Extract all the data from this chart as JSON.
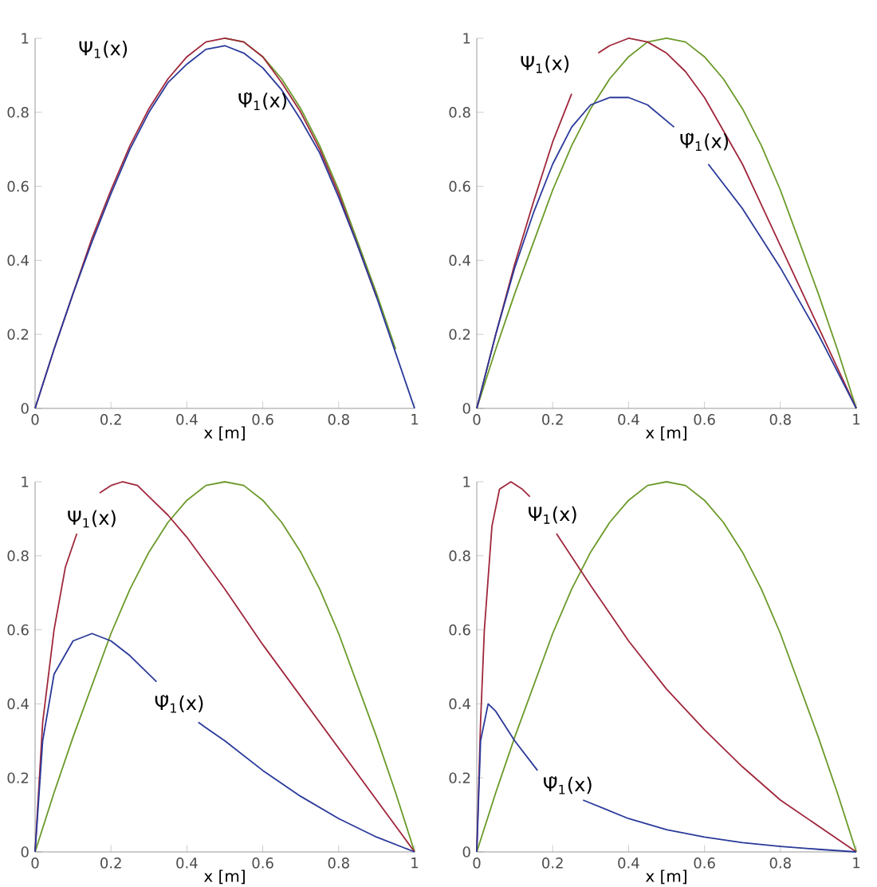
{
  "chart_data": [
    {
      "type": "line",
      "xlabel": "x  [m]",
      "xlim": [
        0,
        1
      ],
      "ylim": [
        0,
        1
      ],
      "xticks": [
        0,
        0.2,
        0.4,
        0.6,
        0.8,
        1
      ],
      "yticks": [
        0,
        0.2,
        0.4,
        0.6,
        0.8,
        1
      ],
      "series": [
        {
          "color": "#6b9a2a",
          "x": [
            0.5,
            0.55,
            0.6,
            0.65,
            0.7,
            0.75,
            0.8,
            0.85,
            0.9,
            0.95
          ],
          "values": [
            1,
            0.99,
            0.95,
            0.89,
            0.81,
            0.71,
            0.59,
            0.45,
            0.31,
            0.16
          ]
        },
        {
          "color": "#a0283c",
          "x": [
            0,
            0.05,
            0.1,
            0.15,
            0.2,
            0.25,
            0.3,
            0.35,
            0.4,
            0.45,
            0.5,
            0.55,
            0.6,
            0.65,
            0.7,
            0.75,
            0.8,
            0.85,
            0.9
          ],
          "values": [
            0,
            0.16,
            0.31,
            0.46,
            0.59,
            0.71,
            0.81,
            0.89,
            0.95,
            0.99,
            1,
            0.99,
            0.95,
            0.88,
            0.8,
            0.7,
            0.58,
            0.44,
            0.3
          ]
        },
        {
          "color": "#2a3a9a",
          "x": [
            0,
            0.05,
            0.1,
            0.15,
            0.2,
            0.25,
            0.3,
            0.35,
            0.4,
            0.45,
            0.5,
            0.55,
            0.6,
            0.65,
            0.7,
            0.75,
            0.8,
            0.85,
            0.9,
            0.95,
            1
          ],
          "values": [
            0,
            0.16,
            0.31,
            0.45,
            0.58,
            0.7,
            0.8,
            0.88,
            0.93,
            0.97,
            0.98,
            0.96,
            0.92,
            0.86,
            0.78,
            0.69,
            0.57,
            0.44,
            0.3,
            0.15,
            0
          ]
        }
      ],
      "annotations": [
        "Ψ$_{1}$(x)",
        "Ψ̃$_{1}$(x)"
      ]
    },
    {
      "type": "line",
      "xlabel": "x  [m]",
      "xlim": [
        0,
        1
      ],
      "ylim": [
        0,
        1
      ],
      "xticks": [
        0,
        0.2,
        0.4,
        0.6,
        0.8,
        1
      ],
      "yticks": [
        0,
        0.2,
        0.4,
        0.6,
        0.8,
        1
      ],
      "series": [
        {
          "color": "#6b9a2a",
          "x": [
            0,
            0.05,
            0.1,
            0.15,
            0.2,
            0.25,
            0.3,
            0.35,
            0.4,
            0.45,
            0.5,
            0.55,
            0.6,
            0.65,
            0.7,
            0.75,
            0.8,
            0.85,
            0.9,
            0.95,
            1
          ],
          "values": [
            0,
            0.16,
            0.31,
            0.45,
            0.59,
            0.71,
            0.81,
            0.89,
            0.95,
            0.99,
            1,
            0.99,
            0.95,
            0.89,
            0.81,
            0.71,
            0.59,
            0.45,
            0.31,
            0.16,
            0
          ]
        },
        {
          "color": "#a0283c",
          "x": [
            0,
            0.05,
            0.1,
            0.15,
            0.2,
            0.25,
            0.28,
            0.32,
            0.35,
            0.4,
            0.45,
            0.5,
            0.55,
            0.6,
            0.65,
            0.7,
            0.75,
            0.8,
            0.85,
            0.9,
            0.95,
            1
          ],
          "values": [
            0,
            0.2,
            0.39,
            0.56,
            0.72,
            0.85,
            null,
            0.96,
            0.98,
            1,
            0.99,
            0.96,
            0.91,
            0.84,
            0.75,
            0.66,
            0.55,
            0.44,
            0.33,
            0.22,
            0.11,
            0
          ]
        },
        {
          "color": "#2a3a9a",
          "x": [
            0,
            0.05,
            0.1,
            0.15,
            0.2,
            0.25,
            0.3,
            0.35,
            0.4,
            0.45,
            0.52,
            0.57,
            0.61,
            0.7,
            0.8,
            0.9,
            1
          ],
          "values": [
            0,
            0.2,
            0.38,
            0.53,
            0.66,
            0.76,
            0.82,
            0.84,
            0.84,
            0.82,
            0.76,
            null,
            0.66,
            0.54,
            0.38,
            0.2,
            0
          ]
        }
      ],
      "annotations": [
        "Ψ$_{1}$(x)",
        "Ψ̃$_{1}$(x)"
      ]
    },
    {
      "type": "line",
      "xlabel": "x  [m]",
      "xlim": [
        0,
        1
      ],
      "ylim": [
        0,
        1
      ],
      "xticks": [
        0,
        0.2,
        0.4,
        0.6,
        0.8,
        1
      ],
      "yticks": [
        0,
        0.2,
        0.4,
        0.6,
        0.8,
        1
      ],
      "series": [
        {
          "color": "#6b9a2a",
          "x": [
            0,
            0.05,
            0.1,
            0.15,
            0.2,
            0.25,
            0.3,
            0.35,
            0.4,
            0.45,
            0.5,
            0.55,
            0.6,
            0.65,
            0.7,
            0.75,
            0.8,
            0.85,
            0.9,
            0.95,
            1
          ],
          "values": [
            0,
            0.16,
            0.31,
            0.45,
            0.59,
            0.71,
            0.81,
            0.89,
            0.95,
            0.99,
            1,
            0.99,
            0.95,
            0.89,
            0.81,
            0.71,
            0.59,
            0.45,
            0.31,
            0.16,
            0
          ]
        },
        {
          "color": "#a0283c",
          "x": [
            0,
            0.02,
            0.05,
            0.08,
            0.11,
            0.14,
            0.17,
            0.2,
            0.23,
            0.27,
            0.3,
            0.35,
            0.4,
            0.5,
            0.6,
            0.7,
            0.8,
            0.9,
            1
          ],
          "values": [
            0,
            0.35,
            0.6,
            0.77,
            0.86,
            null,
            0.97,
            0.99,
            1,
            0.99,
            0.96,
            0.91,
            0.85,
            0.71,
            0.56,
            0.42,
            0.28,
            0.14,
            0
          ]
        },
        {
          "color": "#2a3a9a",
          "x": [
            0,
            0.02,
            0.05,
            0.1,
            0.15,
            0.2,
            0.25,
            0.32,
            0.37,
            0.43,
            0.5,
            0.6,
            0.7,
            0.8,
            0.9,
            1
          ],
          "values": [
            0,
            0.3,
            0.48,
            0.57,
            0.59,
            0.57,
            0.53,
            0.46,
            null,
            0.35,
            0.3,
            0.22,
            0.15,
            0.09,
            0.04,
            0
          ]
        }
      ],
      "annotations": [
        "Ψ$_{1}$(x)",
        "Ψ̃$_{1}$(x)"
      ]
    },
    {
      "type": "line",
      "xlabel": "x  [m]",
      "xlim": [
        0,
        1
      ],
      "ylim": [
        0,
        1
      ],
      "xticks": [
        0,
        0.2,
        0.4,
        0.6,
        0.8,
        1
      ],
      "yticks": [
        0,
        0.2,
        0.4,
        0.6,
        0.8,
        1
      ],
      "series": [
        {
          "color": "#6b9a2a",
          "x": [
            0,
            0.05,
            0.1,
            0.15,
            0.2,
            0.25,
            0.3,
            0.35,
            0.4,
            0.45,
            0.5,
            0.55,
            0.6,
            0.65,
            0.7,
            0.75,
            0.8,
            0.85,
            0.9,
            0.95,
            1
          ],
          "values": [
            0,
            0.16,
            0.31,
            0.45,
            0.59,
            0.71,
            0.81,
            0.89,
            0.95,
            0.99,
            1,
            0.99,
            0.95,
            0.89,
            0.81,
            0.71,
            0.59,
            0.45,
            0.31,
            0.16,
            0
          ]
        },
        {
          "color": "#a0283c",
          "x": [
            0,
            0.01,
            0.02,
            0.04,
            0.06,
            0.09,
            0.12,
            0.14,
            0.18,
            0.21,
            0.3,
            0.4,
            0.5,
            0.6,
            0.7,
            0.8,
            0.9,
            1
          ],
          "values": [
            0,
            0.35,
            0.6,
            0.88,
            0.98,
            1,
            0.98,
            0.96,
            null,
            0.86,
            0.72,
            0.57,
            0.44,
            0.33,
            0.23,
            0.14,
            0.07,
            0
          ]
        },
        {
          "color": "#2a3a9a",
          "x": [
            0,
            0.01,
            0.03,
            0.05,
            0.1,
            0.16,
            0.22,
            0.28,
            0.4,
            0.5,
            0.6,
            0.7,
            0.8,
            0.9,
            1
          ],
          "values": [
            0,
            0.3,
            0.4,
            0.38,
            0.3,
            0.22,
            null,
            0.14,
            0.09,
            0.06,
            0.04,
            0.025,
            0.015,
            0.007,
            0
          ]
        }
      ],
      "annotations": [
        "Ψ$_{1}$(x)",
        "Ψ̃$_{1}$(x)"
      ]
    }
  ]
}
